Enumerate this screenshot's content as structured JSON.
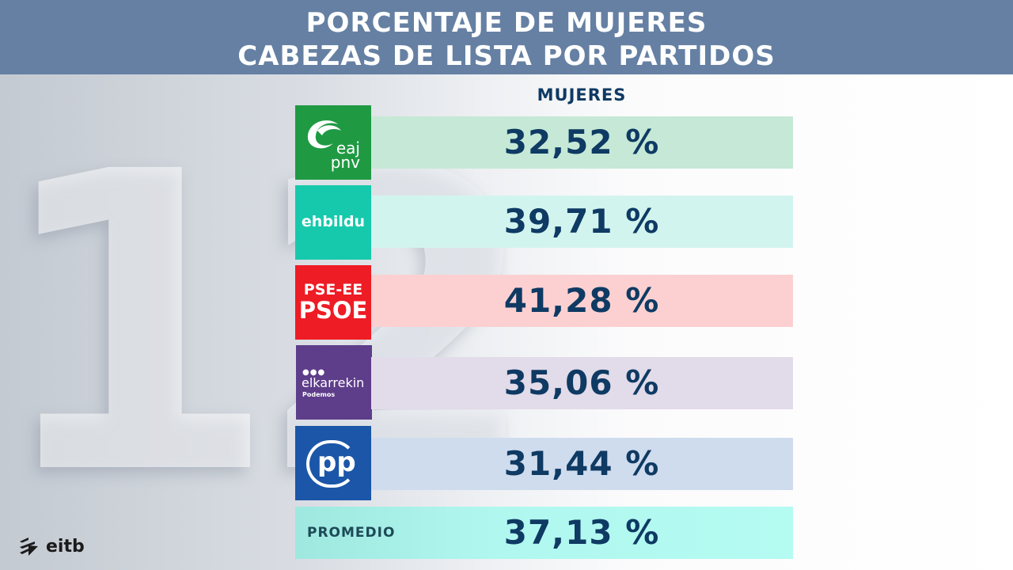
{
  "header": {
    "title": "PORCENTAJE DE MUJERES\nCABEZAS DE LISTA POR PARTIDOS"
  },
  "colors": {
    "header_bg": "#6580a3",
    "value_text": "#0e3a63"
  },
  "chart_data": {
    "type": "table",
    "title": "PORCENTAJE DE MUJERES CABEZAS DE LISTA POR PARTIDOS",
    "column_header": "MUJERES",
    "rows": [
      {
        "party_logo_text": [
          "eaj",
          "pnv"
        ],
        "value": 32.52,
        "display": "32,52 %",
        "logo_color": "#1f9a43",
        "bar_color": "#c5e9d6"
      },
      {
        "party_logo_text": [
          "ehbildu"
        ],
        "value": 39.71,
        "display": "39,71 %",
        "logo_color": "#16c9ac",
        "bar_color": "#d2f4ef"
      },
      {
        "party_logo_text": [
          "PSE-EE",
          "PSOE"
        ],
        "value": 41.28,
        "display": "41,28 %",
        "logo_color": "#ee1c25",
        "bar_color": "#fcd0d1"
      },
      {
        "party_logo_text": [
          "elkarrekin",
          "Podemos"
        ],
        "value": 35.06,
        "display": "35,06 %",
        "logo_color": "#5e3d8a",
        "bar_color": "#e2dbe9"
      },
      {
        "party_logo_text": [
          "pp"
        ],
        "value": 31.44,
        "display": "31,44 %",
        "logo_color": "#1b56a8",
        "bar_color": "#cfdcee"
      }
    ],
    "average": {
      "label": "PROMEDIO",
      "value": 37.13,
      "display": "37,13 %"
    }
  },
  "branding": {
    "channel_logo_text": "eitb",
    "channel_icon": "eitb-arrow-icon"
  }
}
